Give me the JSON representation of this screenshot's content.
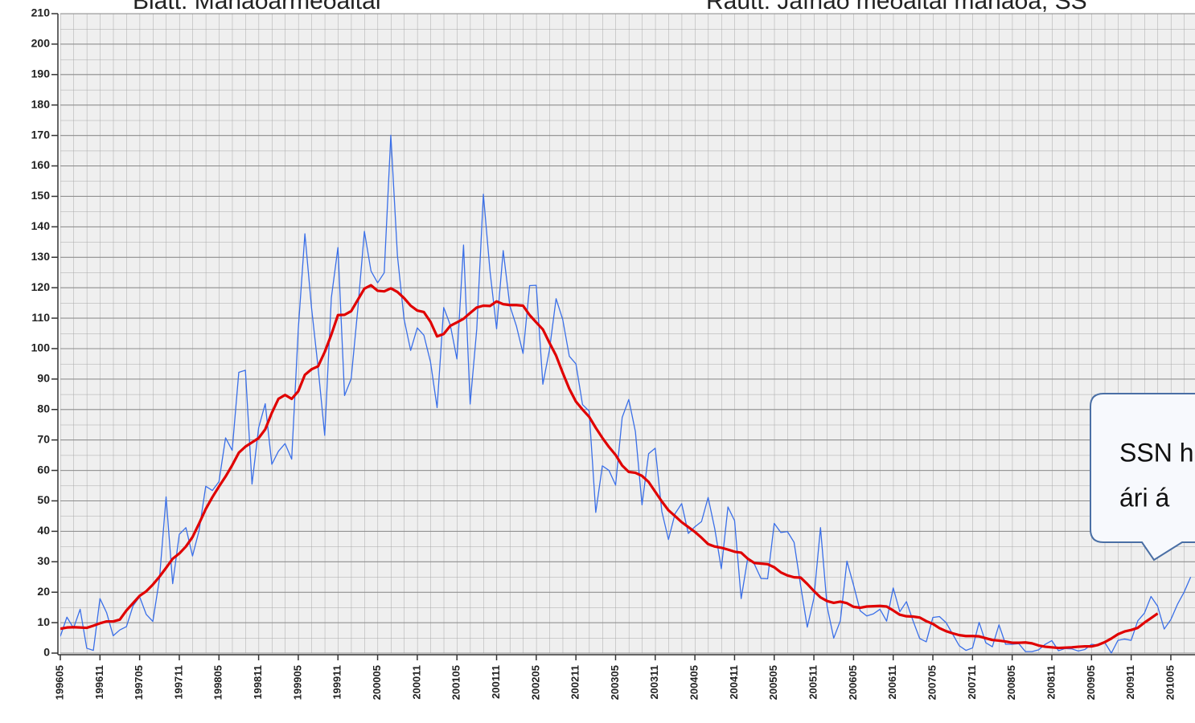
{
  "chart_data": {
    "type": "line",
    "annotations": [
      "Blátt: Mánaðarmeðaltal",
      "Rautt: Jafnað meðaltal mánaða, SS",
      "SSN h",
      "ári á"
    ],
    "categories": [
      "199605",
      null,
      null,
      null,
      null,
      null,
      "199611",
      null,
      null,
      null,
      null,
      null,
      "199705",
      null,
      null,
      null,
      null,
      null,
      "199711",
      null,
      null,
      null,
      null,
      null,
      "199805",
      null,
      null,
      null,
      null,
      null,
      "199811",
      null,
      null,
      null,
      null,
      null,
      "199905",
      null,
      null,
      null,
      null,
      null,
      "199911",
      null,
      null,
      null,
      null,
      null,
      "200005",
      null,
      null,
      null,
      null,
      null,
      "200011",
      null,
      null,
      null,
      null,
      null,
      "200105",
      null,
      null,
      null,
      null,
      null,
      "200111",
      null,
      null,
      null,
      null,
      null,
      "200205",
      null,
      null,
      null,
      null,
      null,
      "200211",
      null,
      null,
      null,
      null,
      null,
      "200305",
      null,
      null,
      null,
      null,
      null,
      "200311",
      null,
      null,
      null,
      null,
      null,
      "200405",
      null,
      null,
      null,
      null,
      null,
      "200411",
      null,
      null,
      null,
      null,
      null,
      "200505",
      null,
      null,
      null,
      null,
      null,
      "200511",
      null,
      null,
      null,
      null,
      null,
      "200605",
      null,
      null,
      null,
      null,
      null,
      "200611",
      null,
      null,
      null,
      null,
      null,
      "200705",
      null,
      null,
      null,
      null,
      null,
      "200711",
      null,
      null,
      null,
      null,
      null,
      "200805",
      null,
      null,
      null,
      null,
      null,
      "200811",
      null,
      null,
      null,
      null,
      null,
      "200905",
      null,
      null,
      null,
      null,
      null,
      "200911",
      null,
      null,
      null,
      null,
      null,
      "201005",
      null,
      null,
      null
    ],
    "series": [
      {
        "color": "#3a6fe8",
        "values": [
          5.5,
          11.8,
          8.2,
          14.4,
          1.6,
          0.9,
          17.9,
          13.3,
          5.7,
          7.6,
          8.7,
          15.5,
          18.5,
          12.7,
          10.4,
          24.4,
          51.3,
          22.8,
          39.0,
          41.2,
          31.9,
          40.3,
          54.8,
          53.4,
          56.3,
          70.7,
          66.6,
          92.2,
          92.9,
          55.5,
          74.0,
          81.9,
          62.0,
          66.3,
          68.8,
          63.7,
          106.4,
          137.7,
          113.5,
          93.7,
          71.5,
          116.7,
          133.2,
          84.6,
          90.1,
          112.9,
          138.5,
          125.5,
          121.6,
          124.9,
          170.1,
          130.5,
          109.7,
          99.4,
          106.8,
          104.4,
          95.6,
          80.6,
          113.5,
          107.7,
          96.6,
          134.0,
          81.8,
          106.4,
          150.7,
          125.5,
          106.5,
          132.2,
          114.1,
          107.4,
          98.4,
          120.7,
          120.8,
          88.3,
          99.6,
          116.4,
          109.6,
          97.5,
          95.0,
          81.6,
          79.5,
          46.2,
          61.5,
          60.0,
          55.2,
          77.4,
          83.3,
          72.7,
          48.7,
          65.5,
          67.3,
          46.5,
          37.3,
          45.8,
          49.1,
          39.3,
          41.5,
          43.2,
          51.1,
          40.9,
          27.7,
          48.0,
          43.5,
          17.9,
          31.3,
          29.2,
          24.5,
          24.4,
          42.6,
          39.6,
          39.9,
          36.4,
          22.1,
          8.5,
          18.0,
          41.2,
          15.3,
          4.9,
          10.6,
          30.2,
          22.3,
          13.9,
          12.2,
          12.9,
          14.4,
          10.5,
          21.4,
          13.6,
          16.9,
          10.6,
          4.8,
          3.7,
          11.7,
          12.0,
          10.0,
          6.2,
          2.4,
          0.9,
          1.7,
          10.1,
          3.4,
          2.1,
          9.3,
          2.9,
          2.9,
          3.1,
          0.5,
          0.5,
          1.1,
          2.9,
          4.1,
          0.8,
          1.5,
          1.4,
          0.7,
          1.2,
          2.9,
          2.6,
          3.5,
          0.0,
          4.2,
          4.6,
          4.2,
          10.6,
          13.1,
          18.6,
          15.4,
          7.9,
          11.0,
          16.0,
          20.0,
          25.0
        ]
      },
      {
        "color": "#e00000",
        "values": [
          8.0,
          8.4,
          8.5,
          8.4,
          8.3,
          9.0,
          9.8,
          10.4,
          10.4,
          11.0,
          14.0,
          16.4,
          18.8,
          20.3,
          22.5,
          25.1,
          28.0,
          31.0,
          32.7,
          35.0,
          38.1,
          42.6,
          47.3,
          51.2,
          54.7,
          58.0,
          61.7,
          65.8,
          67.8,
          69.2,
          70.6,
          73.5,
          78.9,
          83.5,
          84.8,
          83.5,
          86.0,
          91.4,
          93.2,
          94.2,
          98.9,
          104.6,
          111.0,
          111.1,
          112.3,
          116.0,
          119.7,
          120.8,
          119.0,
          118.8,
          119.8,
          118.6,
          116.6,
          114.1,
          112.5,
          112.0,
          108.8,
          104.0,
          104.8,
          107.5,
          108.6,
          109.8,
          111.7,
          113.5,
          114.1,
          114.0,
          115.5,
          114.6,
          114.3,
          114.3,
          114.1,
          111.0,
          108.6,
          106.3,
          101.9,
          97.7,
          92.1,
          86.8,
          82.6,
          80.0,
          77.6,
          74.0,
          70.7,
          67.7,
          65.1,
          61.6,
          59.5,
          59.2,
          58.2,
          56.2,
          53.0,
          49.8,
          46.9,
          45.0,
          43.0,
          41.4,
          39.8,
          37.9,
          35.8,
          35.0,
          34.6,
          34.0,
          33.3,
          33.0,
          31.0,
          29.6,
          29.4,
          29.2,
          28.2,
          26.5,
          25.5,
          24.9,
          24.8,
          22.7,
          20.4,
          18.3,
          17.1,
          16.5,
          16.9,
          16.4,
          15.2,
          14.9,
          15.3,
          15.4,
          15.5,
          15.3,
          14.0,
          12.6,
          12.1,
          12.0,
          11.7,
          10.5,
          9.6,
          8.2,
          7.2,
          6.5,
          5.9,
          5.6,
          5.6,
          5.5,
          4.9,
          4.3,
          4.1,
          3.8,
          3.4,
          3.4,
          3.5,
          3.2,
          2.5,
          2.1,
          1.9,
          1.7,
          1.8,
          1.9,
          2.1,
          2.2,
          2.2,
          2.7,
          3.6,
          4.8,
          6.2,
          7.1,
          7.6,
          8.3,
          10.0,
          11.5,
          13.0,
          null,
          null,
          null,
          null,
          null
        ]
      }
    ],
    "ylim": [
      0,
      210
    ],
    "yticks": [
      0,
      10,
      20,
      30,
      40,
      50,
      60,
      70,
      80,
      90,
      100,
      110,
      120,
      130,
      140,
      150,
      160,
      170,
      180,
      190,
      200,
      210
    ],
    "grid": true
  }
}
